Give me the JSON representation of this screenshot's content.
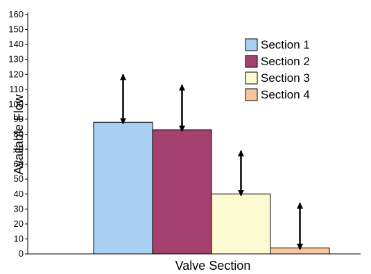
{
  "chart_data": {
    "type": "bar",
    "xlabel": "Valve Section",
    "ylabel": "Available Flow",
    "ylim": [
      0,
      160
    ],
    "yticks": [
      0,
      10,
      20,
      30,
      40,
      50,
      60,
      70,
      80,
      90,
      100,
      110,
      120,
      130,
      140,
      150,
      160
    ],
    "grid": false,
    "legend_position": "top-right",
    "series": [
      {
        "name": "Section 1",
        "value": 88,
        "arrow_low": 87,
        "arrow_high": 120,
        "color": "#a9cff2"
      },
      {
        "name": "Section 2",
        "value": 83,
        "arrow_low": 82,
        "arrow_high": 113,
        "color": "#a4416f"
      },
      {
        "name": "Section 3",
        "value": 40,
        "arrow_low": 39,
        "arrow_high": 69,
        "color": "#fdfbd2"
      },
      {
        "name": "Section 4",
        "value": 4,
        "arrow_low": 3,
        "arrow_high": 34,
        "color": "#f7c69e"
      }
    ]
  }
}
